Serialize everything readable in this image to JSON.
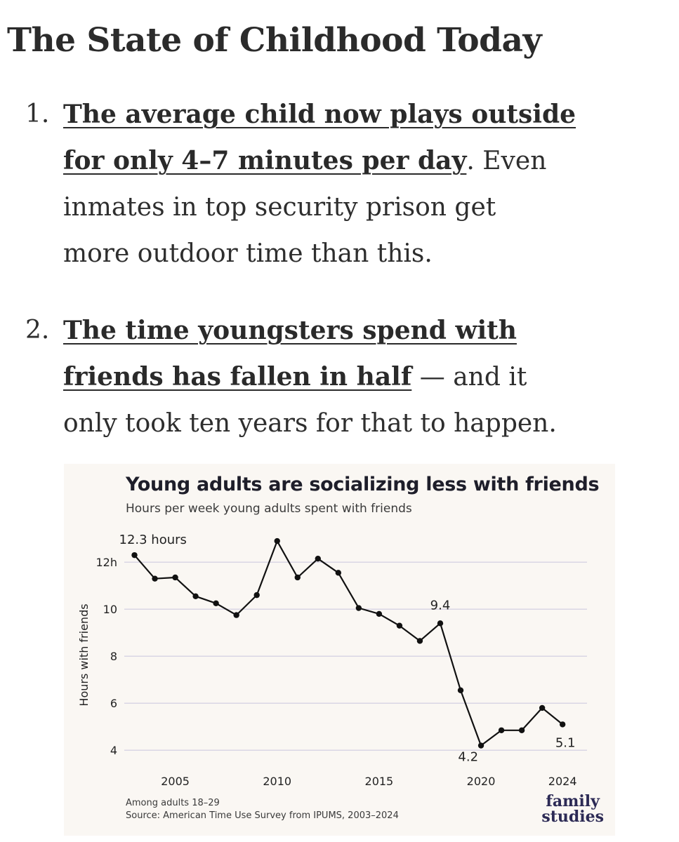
{
  "page": {
    "title": "The State of Childhood Today",
    "items": [
      {
        "number": "1.",
        "lines": [
          {
            "bold": "The average child now plays outside",
            "rest": ""
          },
          {
            "bold": "for only 4–7 minutes per day",
            "rest": ". Even"
          },
          {
            "bold": "",
            "rest": "inmates in top security prison get"
          },
          {
            "bold": "",
            "rest": "more outdoor time than this."
          }
        ]
      },
      {
        "number": "2.",
        "lines": [
          {
            "bold": "The time youngsters spend with",
            "rest": ""
          },
          {
            "bold": "friends has fallen in half",
            "rest": " — and it"
          },
          {
            "bold": "",
            "rest": "only took ten years for that to happen."
          }
        ]
      }
    ]
  },
  "chart_data": {
    "type": "line",
    "title": "Young adults are socializing less with friends",
    "subtitle": "Hours per week young adults spent with friends",
    "ylabel": "Hours with friends",
    "xlabel": "",
    "x": [
      2003,
      2004,
      2005,
      2006,
      2007,
      2008,
      2009,
      2010,
      2011,
      2012,
      2013,
      2014,
      2015,
      2016,
      2017,
      2018,
      2019,
      2020,
      2021,
      2022,
      2023,
      2024
    ],
    "values": [
      12.3,
      11.3,
      11.35,
      10.55,
      10.25,
      9.75,
      10.6,
      12.9,
      11.35,
      12.15,
      11.55,
      10.05,
      9.8,
      9.3,
      8.65,
      9.4,
      6.55,
      4.2,
      4.85,
      4.85,
      5.8,
      5.1
    ],
    "ylim": [
      3.5,
      13.2
    ],
    "xlim": [
      2002.5,
      2025.2
    ],
    "yticks": [
      {
        "value": 4,
        "label": "4"
      },
      {
        "value": 6,
        "label": "6"
      },
      {
        "value": 8,
        "label": "8"
      },
      {
        "value": 10,
        "label": "10"
      },
      {
        "value": 12,
        "label": "12h"
      }
    ],
    "xticks": [
      {
        "value": 2005,
        "label": "2005"
      },
      {
        "value": 2010,
        "label": "2010"
      },
      {
        "value": 2015,
        "label": "2015"
      },
      {
        "value": 2020,
        "label": "2020"
      },
      {
        "value": 2024,
        "label": "2024"
      }
    ],
    "annotations": [
      {
        "x": 2003,
        "y": 12.3,
        "label": "12.3 hours",
        "pos": "above-right"
      },
      {
        "x": 2018,
        "y": 9.4,
        "label": "9.4",
        "pos": "above"
      },
      {
        "x": 2020,
        "y": 4.2,
        "label": "4.2",
        "pos": "below-left"
      },
      {
        "x": 2024,
        "y": 5.1,
        "label": "5.1",
        "pos": "below"
      }
    ],
    "grid": true,
    "footnote": "Among adults 18–29",
    "source": "Source: American Time Use Survey from IPUMS, 2003–2024",
    "logo": {
      "line1": "family",
      "line2": "studies"
    },
    "colors": {
      "line": "#111111",
      "grid": "#d9d6e4",
      "background": "#faf7f3",
      "logo": "#2c2a55"
    }
  }
}
